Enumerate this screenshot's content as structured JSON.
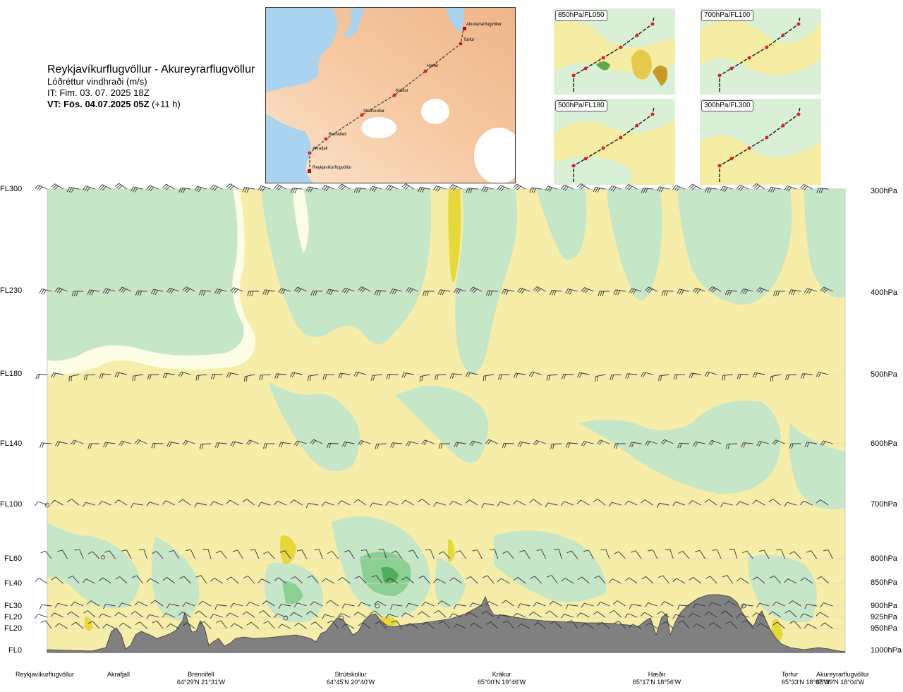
{
  "header": {
    "title": "Reykjavíkurflugvöllur - Akureyrarflugvöllur",
    "subtitle": "Lóðréttur vindhraði (m/s)",
    "initial_time": "IT: Fim. 03. 07. 2025 18Z",
    "valid_prefix": "VT: Fös. 04.07.2025 05Z",
    "valid_suffix": "(+11 h)"
  },
  "route_map": {
    "stations": [
      "Akureyrarflugvöllur",
      "Torfur",
      "Hæðir",
      "Krákur",
      "Strútskollur",
      "Brennifell",
      "Akrafjall",
      "Reykjavíkurflugvöllur"
    ]
  },
  "thumbnails": [
    {
      "label": "850hPa/FL050"
    },
    {
      "label": "700hPa/FL100"
    },
    {
      "label": "500hPa/FL180"
    },
    {
      "label": "300hPa/FL300"
    }
  ],
  "chart_data": {
    "type": "heatmap",
    "title": "Lóðréttur vindhraði (m/s)",
    "x_axis": "route position (station labels)",
    "y_axis_left": [
      "FL300",
      "FL230",
      "FL180",
      "FL140",
      "FL100",
      "FL60",
      "FL40",
      "FL30",
      "FL20",
      "FL20",
      "FL0"
    ],
    "y_axis_right": [
      "300hPa",
      "400hPa",
      "500hPa",
      "600hPa",
      "700hPa",
      "800hPa",
      "850hPa",
      "900hPa",
      "925hPa",
      "950hPa",
      "1000hPa"
    ],
    "levels_hpa": [
      300,
      400,
      500,
      600,
      700,
      800,
      850,
      900,
      925,
      950,
      1000
    ],
    "stations": [
      {
        "name": "Reykjavíkurflugvöllur",
        "coords": ""
      },
      {
        "name": "Akrafjall",
        "coords": ""
      },
      {
        "name": "Brennifell",
        "coords": "64°29'N 21°31'W"
      },
      {
        "name": "Strútskollur",
        "coords": "64°45'N 20°40'W"
      },
      {
        "name": "Krákur",
        "coords": "65°00'N 19°46'W"
      },
      {
        "name": "Hæðir",
        "coords": "65°17'N 18°56'W"
      },
      {
        "name": "Torfur",
        "coords": "65°33'N 18°07'W"
      },
      {
        "name": "Akureyrarflugvöllur",
        "coords": "65°39'N 18°04'W"
      }
    ],
    "colors": {
      "sink_moderate": "#c6e6c8",
      "sink_strong": "#8ccf93",
      "sink_stronger": "#4fae5b",
      "neutral": "#fdfde6",
      "lift_weak": "#f5eda8",
      "lift_strong": "#e5d83a",
      "terrain": "#808080"
    }
  }
}
